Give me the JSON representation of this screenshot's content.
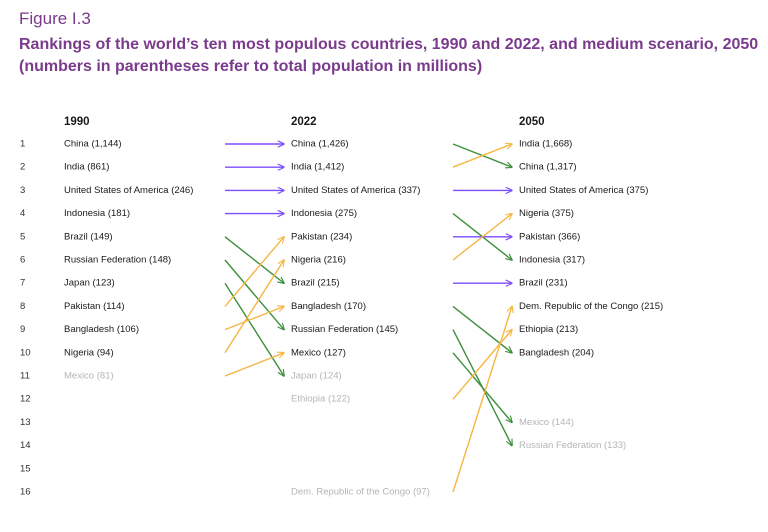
{
  "figure_label": "Figure I.3",
  "title": "Rankings of the world’s ten most populous countries, 1990 and 2022, and medium scenario, 2050 (numbers in parentheses refer to total population in millions)",
  "chart_data": {
    "type": "slope",
    "ranks": [
      "1",
      "2",
      "3",
      "4",
      "5",
      "6",
      "7",
      "8",
      "9",
      "10",
      "11",
      "12",
      "13",
      "14",
      "15",
      "16"
    ],
    "top_n": 10,
    "colors": {
      "same": "#7b4dff",
      "down": "#3d8f3d",
      "up": "#f5b642",
      "text": "#1a1a1a",
      "faded": "#b5b5b5",
      "rank": "#333333"
    },
    "columns": [
      {
        "year": "1990",
        "entries": [
          {
            "country": "China",
            "pop": "1,144",
            "rank": 1
          },
          {
            "country": "India",
            "pop": "861",
            "rank": 2
          },
          {
            "country": "United States of America",
            "pop": "246",
            "rank": 3
          },
          {
            "country": "Indonesia",
            "pop": "181",
            "rank": 4
          },
          {
            "country": "Brazil",
            "pop": "149",
            "rank": 5
          },
          {
            "country": "Russian Federation",
            "pop": "148",
            "rank": 6
          },
          {
            "country": "Japan",
            "pop": "123",
            "rank": 7
          },
          {
            "country": "Pakistan",
            "pop": "114",
            "rank": 8
          },
          {
            "country": "Bangladesh",
            "pop": "106",
            "rank": 9
          },
          {
            "country": "Nigeria",
            "pop": "94",
            "rank": 10
          },
          {
            "country": "Mexico",
            "pop": "81",
            "rank": 11
          }
        ]
      },
      {
        "year": "2022",
        "entries": [
          {
            "country": "China",
            "pop": "1,426",
            "rank": 1
          },
          {
            "country": "India",
            "pop": "1,412",
            "rank": 2
          },
          {
            "country": "United States of America",
            "pop": "337",
            "rank": 3
          },
          {
            "country": "Indonesia",
            "pop": "275",
            "rank": 4
          },
          {
            "country": "Pakistan",
            "pop": "234",
            "rank": 5
          },
          {
            "country": "Nigeria",
            "pop": "216",
            "rank": 6
          },
          {
            "country": "Brazil",
            "pop": "215",
            "rank": 7
          },
          {
            "country": "Bangladesh",
            "pop": "170",
            "rank": 8
          },
          {
            "country": "Russian Federation",
            "pop": "145",
            "rank": 9
          },
          {
            "country": "Mexico",
            "pop": "127",
            "rank": 10
          },
          {
            "country": "Japan",
            "pop": "124",
            "rank": 11
          },
          {
            "country": "Ethiopia",
            "pop": "122",
            "rank": 12
          },
          {
            "country": "Dem. Republic of the Congo",
            "pop": "97",
            "rank": 16
          }
        ]
      },
      {
        "year": "2050",
        "entries": [
          {
            "country": "India",
            "pop": "1,668",
            "rank": 1
          },
          {
            "country": "China",
            "pop": "1,317",
            "rank": 2
          },
          {
            "country": "United States of America",
            "pop": "375",
            "rank": 3
          },
          {
            "country": "Nigeria",
            "pop": "375",
            "rank": 4
          },
          {
            "country": "Pakistan",
            "pop": "366",
            "rank": 5
          },
          {
            "country": "Indonesia",
            "pop": "317",
            "rank": 6
          },
          {
            "country": "Brazil",
            "pop": "231",
            "rank": 7
          },
          {
            "country": "Dem. Republic of the Congo",
            "pop": "215",
            "rank": 8
          },
          {
            "country": "Ethiopia",
            "pop": "213",
            "rank": 9
          },
          {
            "country": "Bangladesh",
            "pop": "204",
            "rank": 10
          },
          {
            "country": "Mexico",
            "pop": "144",
            "rank": 13
          },
          {
            "country": "Russian Federation",
            "pop": "133",
            "rank": 14
          }
        ]
      }
    ],
    "transitions": [
      {
        "from": 0,
        "to": 1,
        "links": [
          [
            1,
            1
          ],
          [
            2,
            2
          ],
          [
            3,
            3
          ],
          [
            4,
            4
          ],
          [
            5,
            7
          ],
          [
            6,
            9
          ],
          [
            7,
            11
          ],
          [
            8,
            5
          ],
          [
            9,
            8
          ],
          [
            10,
            6
          ],
          [
            11,
            10
          ]
        ]
      },
      {
        "from": 1,
        "to": 2,
        "links": [
          [
            1,
            2
          ],
          [
            2,
            1
          ],
          [
            3,
            3
          ],
          [
            4,
            6
          ],
          [
            5,
            5
          ],
          [
            6,
            4
          ],
          [
            7,
            7
          ],
          [
            8,
            10
          ],
          [
            9,
            14
          ],
          [
            10,
            13
          ],
          [
            12,
            9
          ],
          [
            16,
            8
          ]
        ]
      }
    ]
  }
}
